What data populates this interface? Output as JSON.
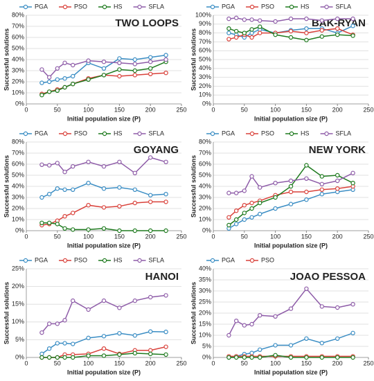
{
  "chart_data": [
    {
      "type": "line",
      "title": "TWO LOOPS",
      "xlabel": "Initial population size (P)",
      "ylabel": "Successful solutions",
      "x": [
        25,
        37,
        50,
        62,
        75,
        100,
        125,
        150,
        175,
        200,
        225
      ],
      "xlim": [
        0,
        250
      ],
      "xticks": [
        0,
        50,
        100,
        150,
        200,
        250
      ],
      "ylim": [
        0,
        80
      ],
      "yticks": [
        {
          "value": 0,
          "label": "0%"
        },
        {
          "value": 10,
          "label": "10%"
        },
        {
          "value": 20,
          "label": "20%"
        },
        {
          "value": 30,
          "label": "30%"
        },
        {
          "value": 40,
          "label": "40%"
        },
        {
          "value": 50,
          "label": "50%"
        },
        {
          "value": 60,
          "label": "60%"
        },
        {
          "value": 70,
          "label": "70%"
        },
        {
          "value": 80,
          "label": "80%"
        }
      ],
      "grid": true,
      "series": [
        {
          "name": "PGA",
          "color": "#3a8dc4",
          "values": [
            19,
            20,
            22,
            23,
            25,
            37,
            32,
            41,
            40,
            42,
            44
          ]
        },
        {
          "name": "PSO",
          "color": "#d9413a",
          "values": [
            9,
            11,
            13,
            15,
            18,
            23,
            26,
            25,
            26,
            27,
            28
          ]
        },
        {
          "name": "HS",
          "color": "#1e7a1e",
          "values": [
            8,
            11,
            12,
            15,
            18,
            22,
            26,
            31,
            30,
            32,
            38
          ]
        },
        {
          "name": "SFLA",
          "color": "#8e5ca8",
          "values": [
            31,
            24,
            32,
            37,
            35,
            39,
            38,
            37,
            36,
            38,
            40
          ]
        }
      ]
    },
    {
      "type": "line",
      "title": "BAK-RYAN",
      "xlabel": "Initial population size (P)",
      "ylabel": "Successful solutions",
      "x": [
        25,
        37,
        50,
        62,
        75,
        100,
        125,
        150,
        175,
        200,
        225
      ],
      "xlim": [
        0,
        250
      ],
      "xticks": [
        0,
        50,
        100,
        150,
        200,
        250
      ],
      "ylim": [
        0,
        100
      ],
      "yticks": [
        {
          "value": 0,
          "label": "0%"
        },
        {
          "value": 10,
          "label": "10%"
        },
        {
          "value": 20,
          "label": "20%"
        },
        {
          "value": 30,
          "label": "30%"
        },
        {
          "value": 40,
          "label": "40%"
        },
        {
          "value": 50,
          "label": "50%"
        },
        {
          "value": 60,
          "label": "60%"
        },
        {
          "value": 70,
          "label": "70%"
        },
        {
          "value": 80,
          "label": "80%"
        },
        {
          "value": 90,
          "label": "90%"
        },
        {
          "value": 100,
          "label": "100%"
        }
      ],
      "grid": true,
      "series": [
        {
          "name": "PGA",
          "color": "#3a8dc4",
          "values": [
            80,
            78,
            75,
            80,
            84,
            80,
            83,
            85,
            85,
            80,
            88
          ]
        },
        {
          "name": "PSO",
          "color": "#d9413a",
          "values": [
            73,
            75,
            78,
            75,
            80,
            80,
            82,
            80,
            83,
            85,
            78
          ]
        },
        {
          "name": "HS",
          "color": "#1e7a1e",
          "values": [
            85,
            82,
            80,
            84,
            87,
            78,
            75,
            72,
            76,
            78,
            77
          ]
        },
        {
          "name": "SFLA",
          "color": "#8e5ca8",
          "values": [
            96,
            97,
            95,
            95,
            94,
            93,
            96,
            96,
            94,
            96,
            96
          ]
        }
      ]
    },
    {
      "type": "line",
      "title": "GOYANG",
      "xlabel": "Initial population size (P)",
      "ylabel": "Successful solutions",
      "x": [
        25,
        37,
        50,
        62,
        75,
        100,
        125,
        150,
        175,
        200,
        225
      ],
      "xlim": [
        0,
        250
      ],
      "xticks": [
        0,
        50,
        100,
        150,
        200,
        250
      ],
      "ylim": [
        0,
        80
      ],
      "yticks": [
        {
          "value": 0,
          "label": "0%"
        },
        {
          "value": 10,
          "label": "10%"
        },
        {
          "value": 20,
          "label": "20%"
        },
        {
          "value": 30,
          "label": "30%"
        },
        {
          "value": 40,
          "label": "40%"
        },
        {
          "value": 50,
          "label": "50%"
        },
        {
          "value": 60,
          "label": "60%"
        },
        {
          "value": 70,
          "label": "70%"
        },
        {
          "value": 80,
          "label": "80%"
        }
      ],
      "grid": true,
      "series": [
        {
          "name": "PGA",
          "color": "#3a8dc4",
          "values": [
            30,
            33,
            38,
            37,
            37,
            43,
            38,
            39,
            37,
            32,
            33
          ]
        },
        {
          "name": "PSO",
          "color": "#d9413a",
          "values": [
            5,
            6,
            9,
            13,
            16,
            23,
            21,
            22,
            25,
            26,
            26
          ]
        },
        {
          "name": "HS",
          "color": "#1e7a1e",
          "values": [
            7,
            7,
            6,
            2,
            1,
            1,
            2,
            0,
            0,
            0,
            0
          ]
        },
        {
          "name": "SFLA",
          "color": "#8e5ca8",
          "values": [
            59.5,
            59,
            61,
            53,
            58,
            62,
            58,
            62,
            52,
            66,
            62
          ]
        }
      ]
    },
    {
      "type": "line",
      "title": "NEW YORK",
      "xlabel": "Initial population size (P)",
      "ylabel": "Successful solutions",
      "x": [
        25,
        37,
        50,
        62,
        75,
        100,
        125,
        150,
        175,
        200,
        225
      ],
      "xlim": [
        0,
        250
      ],
      "xticks": [
        0,
        50,
        100,
        150,
        200,
        250
      ],
      "ylim": [
        0,
        80
      ],
      "yticks": [
        {
          "value": 0,
          "label": "0%"
        },
        {
          "value": 10,
          "label": "10%"
        },
        {
          "value": 20,
          "label": "20%"
        },
        {
          "value": 30,
          "label": "30%"
        },
        {
          "value": 40,
          "label": "40%"
        },
        {
          "value": 50,
          "label": "50%"
        },
        {
          "value": 60,
          "label": "60%"
        },
        {
          "value": 70,
          "label": "70%"
        },
        {
          "value": 80,
          "label": "80%"
        }
      ],
      "grid": true,
      "series": [
        {
          "name": "PGA",
          "color": "#3a8dc4",
          "values": [
            2,
            6,
            10,
            12,
            15,
            20,
            24,
            28,
            33,
            35,
            37
          ]
        },
        {
          "name": "PSO",
          "color": "#d9413a",
          "values": [
            12,
            18,
            23,
            25,
            27,
            32,
            35,
            35,
            37,
            38,
            40
          ]
        },
        {
          "name": "HS",
          "color": "#1e7a1e",
          "values": [
            5,
            10,
            16,
            20,
            25,
            30,
            40,
            59,
            49,
            50,
            43
          ]
        },
        {
          "name": "SFLA",
          "color": "#8e5ca8",
          "values": [
            34,
            34,
            36,
            49,
            39,
            43,
            45,
            47,
            42,
            45,
            52
          ]
        }
      ]
    },
    {
      "type": "line",
      "title": "HANOI",
      "xlabel": "Initial population size (P)",
      "ylabel": "Successful solutions",
      "x": [
        25,
        37,
        50,
        62,
        75,
        100,
        125,
        150,
        175,
        200,
        225
      ],
      "xlim": [
        0,
        250
      ],
      "xticks": [
        0,
        50,
        100,
        150,
        200,
        250
      ],
      "ylim": [
        0,
        25
      ],
      "yticks": [
        {
          "value": 0,
          "label": "0%"
        },
        {
          "value": 5,
          "label": "5%"
        },
        {
          "value": 10,
          "label": "10%"
        },
        {
          "value": 15,
          "label": "15%"
        },
        {
          "value": 20,
          "label": "20%"
        },
        {
          "value": 25,
          "label": "25%"
        }
      ],
      "grid": true,
      "series": [
        {
          "name": "PGA",
          "color": "#3a8dc4",
          "values": [
            1,
            2.5,
            4,
            4,
            3.8,
            5.5,
            6,
            6.8,
            6.2,
            7.3,
            7.2
          ]
        },
        {
          "name": "PSO",
          "color": "#d9413a",
          "values": [
            0,
            0,
            0,
            0.8,
            0.8,
            1,
            2.5,
            1,
            2,
            2,
            3
          ]
        },
        {
          "name": "HS",
          "color": "#1e7a1e",
          "values": [
            0,
            0,
            0,
            0,
            0,
            0.5,
            0.5,
            0.8,
            1.2,
            1,
            0.8
          ]
        },
        {
          "name": "SFLA",
          "color": "#8e5ca8",
          "values": [
            7,
            9.5,
            9.5,
            10.5,
            16,
            13.5,
            16,
            14,
            16,
            17,
            17.5
          ]
        }
      ]
    },
    {
      "type": "line",
      "title": "JOAO PESSOA",
      "xlabel": "Initial population size (P)",
      "ylabel": "Successful solutions",
      "x": [
        25,
        37,
        50,
        62,
        75,
        100,
        125,
        150,
        175,
        200,
        225
      ],
      "xlim": [
        0,
        250
      ],
      "xticks": [
        0,
        50,
        100,
        150,
        200,
        250
      ],
      "ylim": [
        0,
        40
      ],
      "yticks": [
        {
          "value": 0,
          "label": "0%"
        },
        {
          "value": 5,
          "label": "5%"
        },
        {
          "value": 10,
          "label": "10%"
        },
        {
          "value": 15,
          "label": "15%"
        },
        {
          "value": 20,
          "label": "20%"
        },
        {
          "value": 25,
          "label": "25%"
        },
        {
          "value": 30,
          "label": "30%"
        },
        {
          "value": 35,
          "label": "35%"
        },
        {
          "value": 40,
          "label": "40%"
        }
      ],
      "grid": true,
      "series": [
        {
          "name": "PGA",
          "color": "#3a8dc4",
          "values": [
            0,
            0.5,
            1.5,
            2,
            3.5,
            5.5,
            5.5,
            8.5,
            6.5,
            8.5,
            11
          ]
        },
        {
          "name": "PSO",
          "color": "#d9413a",
          "values": [
            0.5,
            0.5,
            0.5,
            0.5,
            0.5,
            0.5,
            0.5,
            0.5,
            0.5,
            0.5,
            0.5
          ]
        },
        {
          "color": "#1e7a1e",
          "values": [
            0,
            0,
            0,
            0,
            0,
            1,
            0,
            0,
            0,
            0,
            0
          ]
        },
        {
          "color": "#8e5ca8",
          "values": [
            10,
            16.5,
            14.5,
            15,
            19,
            18.5,
            22,
            31,
            23,
            22.5,
            24
          ]
        }
      ]
    }
  ]
}
